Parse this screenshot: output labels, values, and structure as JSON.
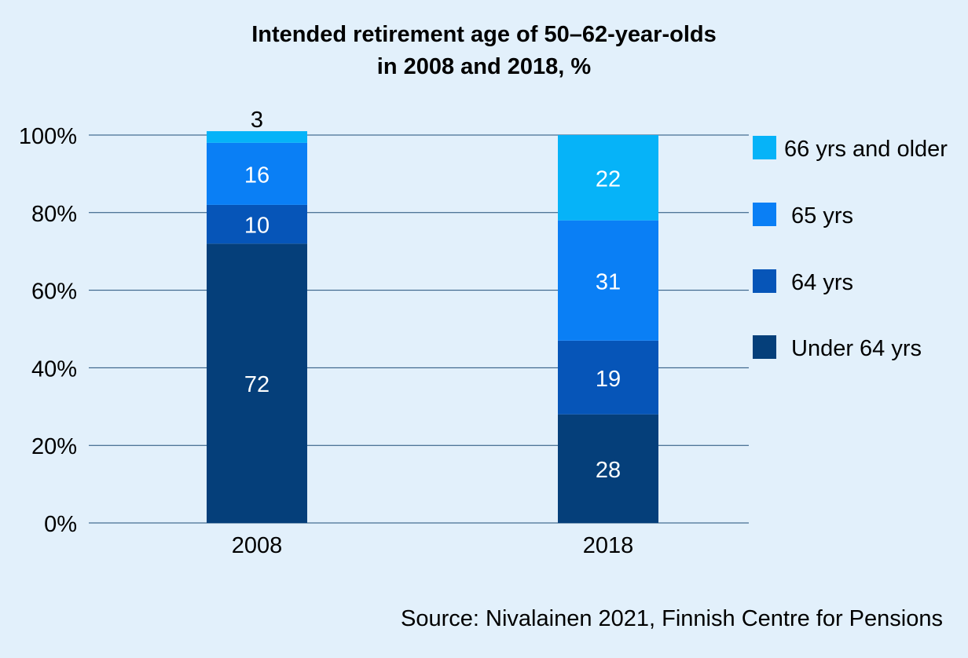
{
  "chart_data": {
    "type": "bar",
    "stacked": true,
    "title": [
      "Intended retirement age of 50–62-year-olds",
      "in 2008 and 2018, %"
    ],
    "categories": [
      "2008",
      "2018"
    ],
    "y_ticks": [
      "0%",
      "20%",
      "40%",
      "60%",
      "80%",
      "100%"
    ],
    "ylim": [
      0,
      100
    ],
    "grid": true,
    "legend_position": "right",
    "series": [
      {
        "name": "Under 64 yrs",
        "values": [
          72,
          28
        ],
        "color": "#053f7a"
      },
      {
        "name": "64 yrs",
        "values": [
          10,
          19
        ],
        "color": "#0655b8"
      },
      {
        "name": "65 yrs",
        "values": [
          16,
          31
        ],
        "color": "#0a7ff5"
      },
      {
        "name": "66 yrs and older",
        "values": [
          3,
          22
        ],
        "color": "#06b3f8"
      }
    ],
    "data_labels": [
      [
        "72",
        "10",
        "16",
        "3"
      ],
      [
        "28",
        "19",
        "31",
        "22"
      ]
    ],
    "legend_order": [
      "66 yrs and older",
      "65 yrs",
      "64 yrs",
      "Under 64 yrs"
    ]
  },
  "source": "Source: Nivalainen 2021, Finnish Centre for Pensions",
  "colors": {
    "background": "#e2f0fb",
    "gridline": "#1f4e79"
  }
}
